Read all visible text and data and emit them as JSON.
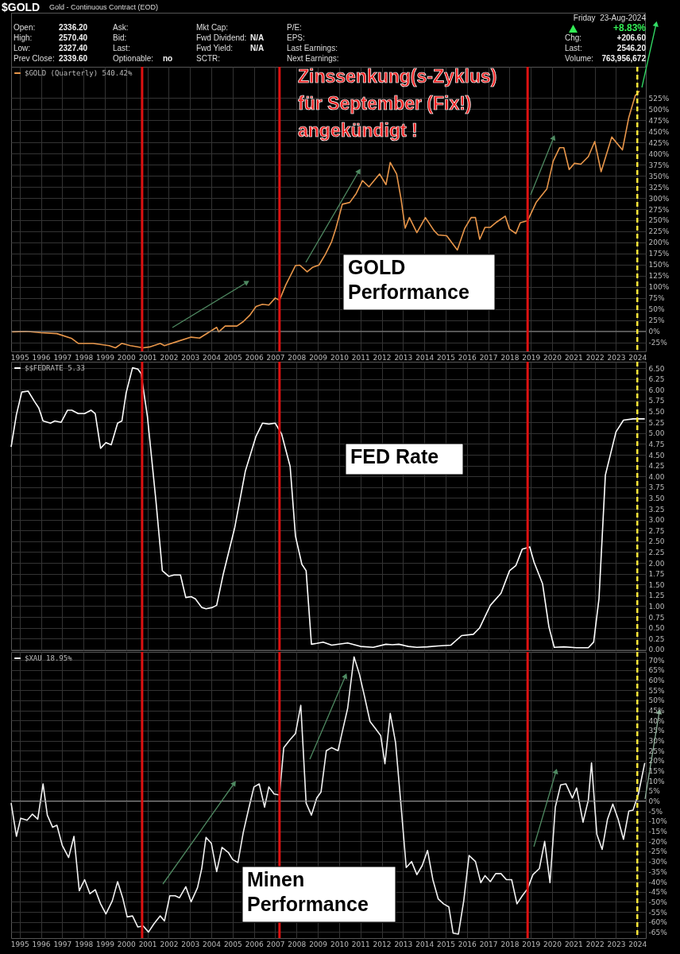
{
  "chart_data": [
    {
      "type": "other",
      "title": "$GOLD",
      "subtitle": "Gold - Continuous Contract (EOD)",
      "annotations": [
        "Open:",
        "2336.20",
        "High:",
        "2570.40",
        "Low:",
        "2327.40",
        "Prev Close:",
        "2339.60",
        "Ask:",
        "Bid:",
        "Last:",
        "Optionable:",
        "no",
        "Mkt Cap:",
        "Fwd Dividend:",
        "N/A",
        "Fwd Yield:",
        "N/A",
        "SCTR:",
        "P/E:",
        "EPS:",
        "Last Earnings:",
        "Next Earnings:",
        "Friday  23-Aug-2024",
        "+8.83%",
        "Chg:",
        "+206.60",
        "Last:",
        "2546.20",
        "Volume:",
        "763,956,672"
      ]
    },
    {
      "type": "line",
      "grid": true,
      "legend": "top left",
      "xlim": [
        1994.6,
        2024.4
      ],
      "ylim": [
        -45,
        595
      ],
      "xticks": [
        1995,
        1996,
        1997,
        1998,
        1999,
        2000,
        2001,
        2002,
        2003,
        2004,
        2005,
        2006,
        2007,
        2008,
        2009,
        2010,
        2011,
        2012,
        2013,
        2014,
        2015,
        2016,
        2017,
        2018,
        2019,
        2020,
        2021,
        2022,
        2023,
        2024
      ],
      "yticks": [
        {
          "value": -25,
          "label": "-25%"
        },
        {
          "value": 0,
          "label": "0%"
        },
        {
          "value": 25,
          "label": "25%"
        },
        {
          "value": 50,
          "label": "50%"
        },
        {
          "value": 75,
          "label": "75%"
        },
        {
          "value": 100,
          "label": "100%"
        },
        {
          "value": 125,
          "label": "125%"
        },
        {
          "value": 150,
          "label": "150%"
        },
        {
          "value": 175,
          "label": "175%"
        },
        {
          "value": 200,
          "label": "200%"
        },
        {
          "value": 225,
          "label": "225%"
        },
        {
          "value": 250,
          "label": "250%"
        },
        {
          "value": 275,
          "label": "275%"
        },
        {
          "value": 300,
          "label": "300%"
        },
        {
          "value": 325,
          "label": "325%"
        },
        {
          "value": 350,
          "label": "350%"
        },
        {
          "value": 375,
          "label": "375%"
        },
        {
          "value": 400,
          "label": "400%"
        },
        {
          "value": 425,
          "label": "425%"
        },
        {
          "value": 450,
          "label": "450%"
        },
        {
          "value": 475,
          "label": "475%"
        },
        {
          "value": 500,
          "label": "500%"
        },
        {
          "value": 525,
          "label": "525%"
        }
      ],
      "x": [
        1994.65,
        1995.3,
        1996.0,
        1996.75,
        1997.45,
        1997.75,
        1998.05,
        1998.45,
        1999.2,
        1999.5,
        1999.8,
        2000.2,
        2000.8,
        2001.1,
        2001.6,
        2001.8,
        2002.45,
        2003.05,
        2003.45,
        2003.85,
        2004.25,
        2004.35,
        2004.65,
        2005.2,
        2005.5,
        2005.8,
        2006.1,
        2006.4,
        2006.7,
        2007.0,
        2007.2,
        2007.5,
        2007.95,
        2008.15,
        2008.5,
        2008.75,
        2009.05,
        2009.35,
        2009.65,
        2009.85,
        2010.15,
        2010.5,
        2010.8,
        2011.1,
        2011.4,
        2011.9,
        2012.2,
        2012.4,
        2012.7,
        2012.9,
        2013.1,
        2013.3,
        2013.65,
        2014.05,
        2014.45,
        2014.65,
        2015.05,
        2015.55,
        2015.9,
        2016.2,
        2016.4,
        2016.6,
        2016.85,
        2017.1,
        2017.4,
        2017.8,
        2018.0,
        2018.3,
        2018.5,
        2018.85,
        2019.25,
        2019.75,
        2020.05,
        2020.35,
        2020.55,
        2020.8,
        2021.05,
        2021.35,
        2021.7,
        2022.0,
        2022.3,
        2022.8,
        2023.3,
        2023.6,
        2023.9,
        2024.1
      ],
      "series": [
        {
          "name": "$GOLD (Quarterly) 540.42%",
          "color": "#e8964a",
          "values": [
            -1,
            0,
            -3,
            -5,
            -16,
            -27,
            -27,
            -27,
            -32,
            -37,
            -27,
            -32,
            -37,
            -35,
            -27,
            -32,
            -22,
            -13,
            -15,
            -3,
            9,
            -1,
            12,
            12,
            22,
            36,
            56,
            61,
            59,
            75,
            70,
            105,
            148,
            149,
            134,
            144,
            149,
            173,
            202,
            232,
            286,
            290,
            310,
            339,
            325,
            354,
            330,
            380,
            354,
            300,
            232,
            256,
            222,
            256,
            227,
            217,
            215,
            183,
            232,
            256,
            256,
            207,
            234,
            234,
            246,
            259,
            230,
            220,
            244,
            249,
            290,
            320,
            383,
            413,
            413,
            364,
            378,
            376,
            393,
            427,
            359,
            437,
            408,
            481,
            530,
            540.42
          ]
        }
      ],
      "ref_lines": [
        {
          "axis": "y",
          "value": 0,
          "color": "#8a8a8a"
        },
        {
          "axis": "x",
          "value": 2000.75,
          "color": "#dd1111"
        },
        {
          "axis": "x",
          "value": 2007.2,
          "color": "#dd1111"
        },
        {
          "axis": "x",
          "value": 2018.85,
          "color": "#dd1111"
        },
        {
          "axis": "x",
          "value": 2024.0,
          "color": "#ffe83a",
          "line_style": "dashed"
        }
      ],
      "annotations": [
        "Zinssenkung(s-Zyklus)\nfür September (Fix!)\nangekündigt !",
        "GOLD\nPerformance"
      ]
    },
    {
      "type": "line",
      "grid": true,
      "legend": "top left",
      "tick_labels": "y",
      "xlim": [
        1994.6,
        2024.4
      ],
      "ylim": [
        -0.02,
        6.65
      ],
      "xticks": [
        1995,
        1996,
        1997,
        1998,
        1999,
        2000,
        2001,
        2002,
        2003,
        2004,
        2005,
        2006,
        2007,
        2008,
        2009,
        2010,
        2011,
        2012,
        2013,
        2014,
        2015,
        2016,
        2017,
        2018,
        2019,
        2020,
        2021,
        2022,
        2023,
        2024
      ],
      "yticks": [
        {
          "value": 0,
          "label": "0.00"
        },
        0.25,
        {
          "value": 0.5,
          "label": "0.50"
        },
        0.75,
        {
          "value": 1,
          "label": "1.00"
        },
        1.25,
        {
          "value": 1.5,
          "label": "1.50"
        },
        1.75,
        {
          "value": 2,
          "label": "2.00"
        },
        2.25,
        {
          "value": 2.5,
          "label": "2.50"
        },
        2.75,
        {
          "value": 3,
          "label": "3.00"
        },
        3.25,
        {
          "value": 3.5,
          "label": "3.50"
        },
        3.75,
        {
          "value": 4,
          "label": "4.00"
        },
        4.25,
        {
          "value": 4.5,
          "label": "4.50"
        },
        4.75,
        {
          "value": 5,
          "label": "5.00"
        },
        5.25,
        {
          "value": 5.5,
          "label": "5.50"
        },
        5.75,
        {
          "value": 6,
          "label": "6.00"
        },
        6.25,
        {
          "value": 6.5,
          "label": "6.50"
        }
      ],
      "x": [
        1994.6,
        1994.85,
        1995.1,
        1995.4,
        1995.7,
        1995.9,
        1996.1,
        1996.45,
        1996.65,
        1996.95,
        1997.25,
        1997.45,
        1997.75,
        1998.05,
        1998.35,
        1998.55,
        1998.8,
        1999.05,
        1999.3,
        1999.6,
        1999.8,
        2000.0,
        2000.3,
        2000.55,
        2000.7,
        2001.0,
        2001.4,
        2001.7,
        2002.0,
        2002.25,
        2002.55,
        2002.8,
        2003.05,
        2003.25,
        2003.55,
        2003.75,
        2004.05,
        2004.25,
        2004.55,
        2005.1,
        2005.6,
        2006.1,
        2006.4,
        2006.7,
        2007.0,
        2007.3,
        2007.7,
        2007.95,
        2008.25,
        2008.45,
        2008.7,
        2008.95,
        2009.25,
        2009.65,
        2010.4,
        2011.0,
        2011.6,
        2012.2,
        2012.5,
        2012.8,
        2013.25,
        2013.65,
        2014.15,
        2014.65,
        2015.25,
        2015.75,
        2016.3,
        2016.6,
        2017.1,
        2017.6,
        2018.0,
        2018.3,
        2018.6,
        2018.95,
        2019.15,
        2019.55,
        2019.85,
        2020.1,
        2020.55,
        2021.15,
        2021.7,
        2021.95,
        2022.2,
        2022.5,
        2023.0,
        2023.35,
        2023.8,
        2024.35
      ],
      "series": [
        {
          "name": "$$FEDRATE 5.33",
          "color": "#ffffff",
          "values": [
            4.68,
            5.43,
            5.95,
            5.97,
            5.73,
            5.58,
            5.28,
            5.23,
            5.28,
            5.25,
            5.53,
            5.53,
            5.45,
            5.45,
            5.53,
            5.45,
            4.65,
            4.78,
            4.73,
            5.23,
            5.28,
            5.93,
            6.51,
            6.48,
            6.38,
            5.38,
            3.43,
            1.82,
            1.69,
            1.72,
            1.72,
            1.2,
            1.22,
            1.17,
            0.97,
            0.94,
            0.97,
            1.02,
            1.72,
            2.82,
            4.13,
            4.93,
            5.23,
            5.21,
            5.23,
            4.98,
            4.23,
            2.62,
            1.97,
            1.82,
            0.12,
            0.14,
            0.17,
            0.1,
            0.15,
            0.07,
            0.05,
            0.12,
            0.11,
            0.12,
            0.07,
            0.05,
            0.06,
            0.08,
            0.1,
            0.32,
            0.35,
            0.5,
            1.02,
            1.3,
            1.82,
            1.94,
            2.32,
            2.37,
            2.02,
            1.52,
            0.52,
            0.05,
            0.06,
            0.04,
            0.04,
            0.17,
            1.17,
            4.03,
            5.03,
            5.3,
            5.33,
            5.33
          ]
        }
      ],
      "ref_lines": [
        {
          "axis": "x",
          "value": 2000.75,
          "color": "#dd1111"
        },
        {
          "axis": "x",
          "value": 2007.2,
          "color": "#dd1111"
        },
        {
          "axis": "x",
          "value": 2018.85,
          "color": "#dd1111"
        },
        {
          "axis": "x",
          "value": 2024.0,
          "color": "#ffe83a",
          "line_style": "dashed"
        }
      ],
      "annotations": [
        "FED Rate"
      ]
    },
    {
      "type": "line",
      "grid": true,
      "legend": "top left",
      "xlim": [
        1994.6,
        2024.4
      ],
      "ylim": [
        -68,
        74
      ],
      "xticks": [
        1995,
        1996,
        1997,
        1998,
        1999,
        2000,
        2001,
        2002,
        2003,
        2004,
        2005,
        2006,
        2007,
        2008,
        2009,
        2010,
        2011,
        2012,
        2013,
        2014,
        2015,
        2016,
        2017,
        2018,
        2019,
        2020,
        2021,
        2022,
        2023,
        2024
      ],
      "yticks": [
        {
          "value": -65,
          "label": "-65%"
        },
        {
          "value": -60,
          "label": "-60%"
        },
        {
          "value": -55,
          "label": "-55%"
        },
        {
          "value": -50,
          "label": "-50%"
        },
        {
          "value": -45,
          "label": "-45%"
        },
        {
          "value": -40,
          "label": "-40%"
        },
        {
          "value": -35,
          "label": "-35%"
        },
        {
          "value": -30,
          "label": "-30%"
        },
        {
          "value": -25,
          "label": "-25%"
        },
        {
          "value": -20,
          "label": "-20%"
        },
        {
          "value": -15,
          "label": "-15%"
        },
        {
          "value": -10,
          "label": "-10%"
        },
        {
          "value": -5,
          "label": "-5%"
        },
        {
          "value": 0,
          "label": "0%"
        },
        {
          "value": 5,
          "label": "5%"
        },
        {
          "value": 10,
          "label": "10%"
        },
        {
          "value": 15,
          "label": "15%"
        },
        {
          "value": 20,
          "label": "20%"
        },
        {
          "value": 25,
          "label": "25%"
        },
        {
          "value": 30,
          "label": "30%"
        },
        {
          "value": 35,
          "label": "35%"
        },
        {
          "value": 40,
          "label": "40%"
        },
        {
          "value": 45,
          "label": "45%"
        },
        {
          "value": 50,
          "label": "50%"
        },
        {
          "value": 55,
          "label": "55%"
        },
        {
          "value": 60,
          "label": "60%"
        },
        {
          "value": 65,
          "label": "65%"
        },
        {
          "value": 70,
          "label": "70%"
        }
      ],
      "x": [
        1994.6,
        1994.85,
        1995.05,
        1995.35,
        1995.6,
        1995.85,
        1996.1,
        1996.3,
        1996.55,
        1996.75,
        1997.0,
        1997.3,
        1997.55,
        1997.8,
        1998.05,
        1998.3,
        1998.55,
        1998.8,
        1999.05,
        1999.35,
        1999.6,
        1999.85,
        2000.05,
        2000.3,
        2000.55,
        2000.8,
        2001.05,
        2001.3,
        2001.6,
        2001.8,
        2002.05,
        2002.3,
        2002.5,
        2002.8,
        2003.05,
        2003.35,
        2003.55,
        2003.75,
        2004.0,
        2004.25,
        2004.5,
        2004.8,
        2005.0,
        2005.25,
        2005.5,
        2005.75,
        2006.0,
        2006.25,
        2006.5,
        2006.7,
        2006.95,
        2007.2,
        2007.4,
        2007.7,
        2007.95,
        2008.2,
        2008.45,
        2008.7,
        2008.95,
        2009.15,
        2009.4,
        2009.65,
        2009.95,
        2010.15,
        2010.4,
        2010.7,
        2010.95,
        2011.2,
        2011.45,
        2011.7,
        2011.95,
        2012.15,
        2012.4,
        2012.65,
        2012.9,
        2013.15,
        2013.4,
        2013.65,
        2013.9,
        2014.15,
        2014.4,
        2014.65,
        2014.9,
        2015.15,
        2015.35,
        2015.6,
        2015.85,
        2016.1,
        2016.4,
        2016.65,
        2016.85,
        2017.1,
        2017.35,
        2017.6,
        2017.85,
        2018.1,
        2018.35,
        2018.6,
        2018.85,
        2019.1,
        2019.4,
        2019.65,
        2019.9,
        2020.15,
        2020.4,
        2020.65,
        2020.95,
        2021.15,
        2021.45,
        2021.7,
        2021.85,
        2022.1,
        2022.35,
        2022.6,
        2022.85,
        2023.1,
        2023.35,
        2023.6,
        2023.8,
        2024.05,
        2024.35
      ],
      "series": [
        {
          "name": "$XAU 18.95%",
          "color": "#f2f2f2",
          "values": [
            -1,
            -17.5,
            -8.5,
            -9.5,
            -6.5,
            -9,
            8.5,
            -7,
            -13,
            -12,
            -22,
            -28,
            -17.5,
            -44.5,
            -39,
            -46,
            -44,
            -51,
            -56,
            -49.5,
            -40,
            -48.5,
            -57.5,
            -57,
            -62.5,
            -62,
            -65,
            -61,
            -57,
            -59.5,
            -47,
            -47,
            -48,
            -42.5,
            -50,
            -43,
            -33.5,
            -18,
            -21,
            -35,
            -23,
            -25.5,
            -29,
            -30.5,
            -15.5,
            -4,
            7,
            8.5,
            -3,
            7,
            3.5,
            3,
            26.5,
            30.5,
            33.5,
            47.5,
            -1,
            -7,
            1.5,
            4.5,
            25,
            26.5,
            25,
            34.5,
            46,
            71.5,
            63,
            51.5,
            39.5,
            36,
            32.5,
            18.5,
            43.5,
            29,
            -1.5,
            -33,
            -30,
            -36.5,
            -32,
            -24.5,
            -39,
            -48.5,
            -51,
            -52.5,
            -65.5,
            -66,
            -49.5,
            -27,
            -30,
            -40.5,
            -37,
            -40,
            -36,
            -36,
            -39,
            -39,
            -51,
            -47,
            -43.5,
            -36.5,
            -33.5,
            -20,
            -40.5,
            -3,
            8,
            8.5,
            1.5,
            6.5,
            -10.5,
            0.5,
            19,
            -16.5,
            -24,
            -9,
            -1.5,
            -9,
            -19,
            -5,
            -4.5,
            3.5,
            18.95
          ]
        }
      ],
      "ref_lines": [
        {
          "axis": "y",
          "value": 0,
          "color": "#8a8a8a"
        },
        {
          "axis": "x",
          "value": 2000.75,
          "color": "#dd1111"
        },
        {
          "axis": "x",
          "value": 2007.2,
          "color": "#dd1111"
        },
        {
          "axis": "x",
          "value": 2018.85,
          "color": "#dd1111"
        },
        {
          "axis": "x",
          "value": 2024.0,
          "color": "#ffe83a",
          "line_style": "dashed"
        }
      ],
      "annotations": [
        "Minen\nPerformance"
      ]
    }
  ]
}
